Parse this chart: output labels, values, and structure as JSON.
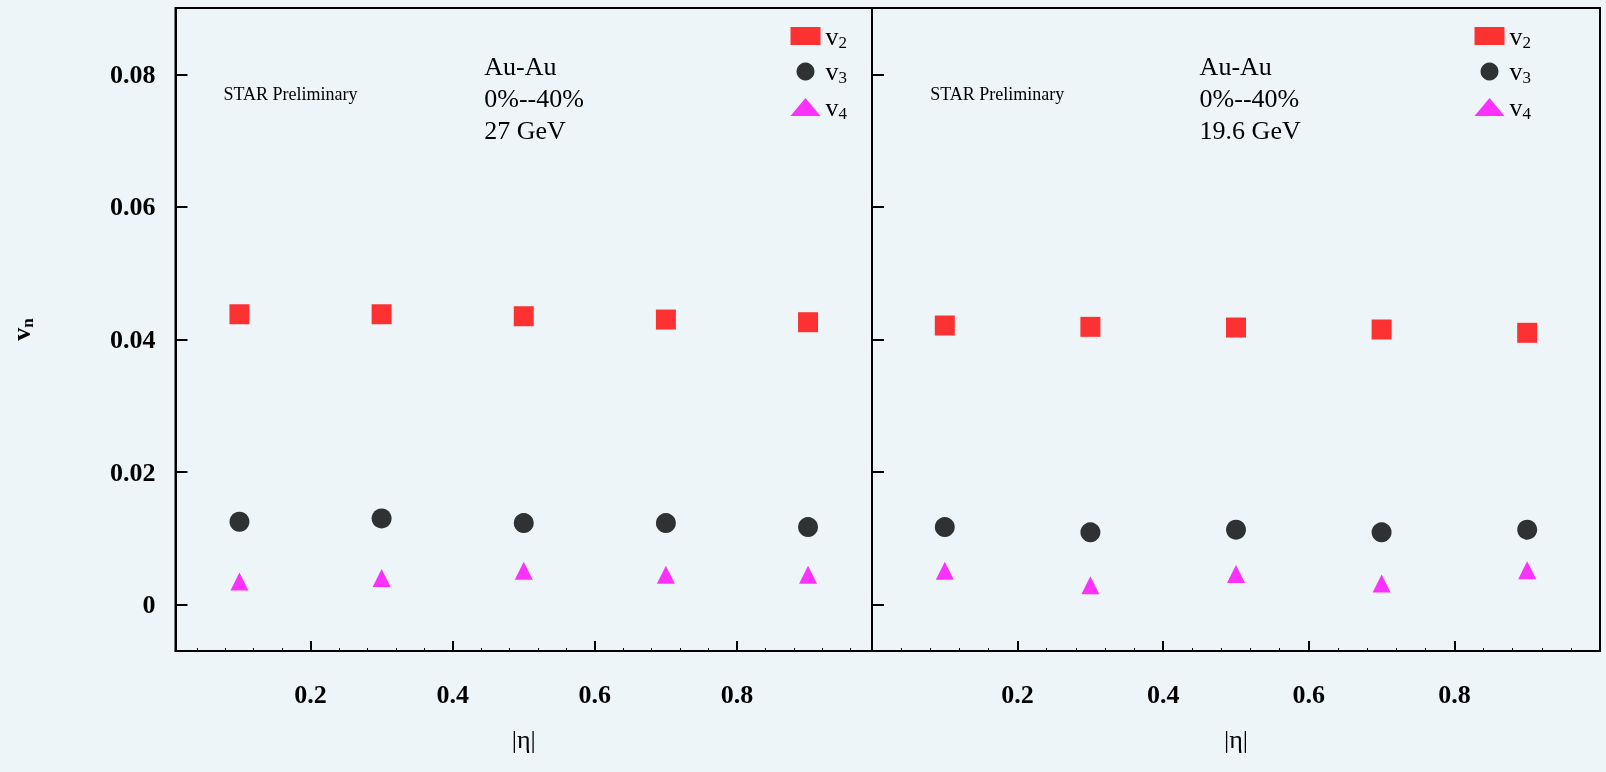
{
  "chart_data": [
    {
      "type": "scatter",
      "xlabel": "|η|",
      "ylabel": "v$_{n}$",
      "annotations": [
        "STAR Preliminary",
        "Au-Au",
        "0%--40%",
        "27 GeV"
      ],
      "x": [
        0.1,
        0.3,
        0.5,
        0.7,
        0.9
      ],
      "series": [
        {
          "name": "v$_{2}$",
          "color": "#ff0000",
          "marker": "square",
          "values": [
            0.0438,
            0.0438,
            0.0435,
            0.043,
            0.0426
          ]
        },
        {
          "name": "v$_{3}$",
          "color": "#000000",
          "marker": "circle",
          "values": [
            0.0125,
            0.013,
            0.0123,
            0.0123,
            0.0117
          ]
        },
        {
          "name": "v$_{4}$",
          "color": "#ff00ff",
          "marker": "triangle",
          "values": [
            0.0035,
            0.004,
            0.0051,
            0.0045,
            0.0045
          ]
        }
      ],
      "xlim": [
        0.01,
        0.99
      ],
      "xticks": [
        0.2,
        0.4,
        0.6,
        0.8
      ],
      "ylim": [
        -0.007,
        0.09
      ],
      "yticks": [
        0,
        0.02,
        0.04,
        0.06,
        0.08
      ],
      "legend": "top right",
      "grid": false
    },
    {
      "type": "scatter",
      "xlabel": "|η|",
      "annotations": [
        "STAR Preliminary",
        "Au-Au",
        "0%--40%",
        "19.6 GeV"
      ],
      "x": [
        0.1,
        0.3,
        0.5,
        0.7,
        0.9
      ],
      "series": [
        {
          "name": "v$_{2}$",
          "color": "#ff0000",
          "marker": "square",
          "values": [
            0.0421,
            0.0419,
            0.0418,
            0.0415,
            0.041
          ]
        },
        {
          "name": "v$_{3}$",
          "color": "#000000",
          "marker": "circle",
          "values": [
            0.0117,
            0.0109,
            0.0113,
            0.0109,
            0.0113
          ]
        },
        {
          "name": "v$_{4}$",
          "color": "#ff00ff",
          "marker": "triangle",
          "values": [
            0.0051,
            0.0029,
            0.0046,
            0.0032,
            0.0052
          ]
        }
      ],
      "xlim": [
        0,
        1
      ],
      "xticks": [
        0.2,
        0.4,
        0.6,
        0.8
      ],
      "ylim": [
        -0.007,
        0.09
      ],
      "yticks": [
        0,
        0.02,
        0.04,
        0.06,
        0.08
      ],
      "legend": "top right",
      "grid": false,
      "tick_labels": "x"
    }
  ]
}
